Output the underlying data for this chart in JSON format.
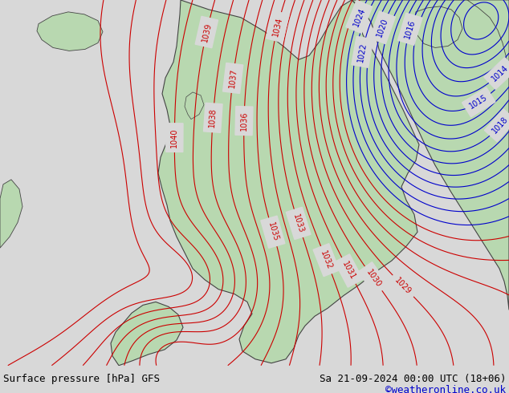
{
  "title_left": "Surface pressure [hPa] GFS",
  "title_right": "Sa 21-09-2024 00:00 UTC (18+06)",
  "watermark": "©weatheronline.co.uk",
  "bg_color": "#d8d8d8",
  "land_color": "#b8d8b0",
  "contour_color_red": "#cc0000",
  "contour_color_blue": "#0000cc",
  "label_fontsize": 7,
  "footer_fontsize": 9,
  "watermark_color": "#0000cc",
  "figsize": [
    6.34,
    4.9
  ],
  "dpi": 100
}
